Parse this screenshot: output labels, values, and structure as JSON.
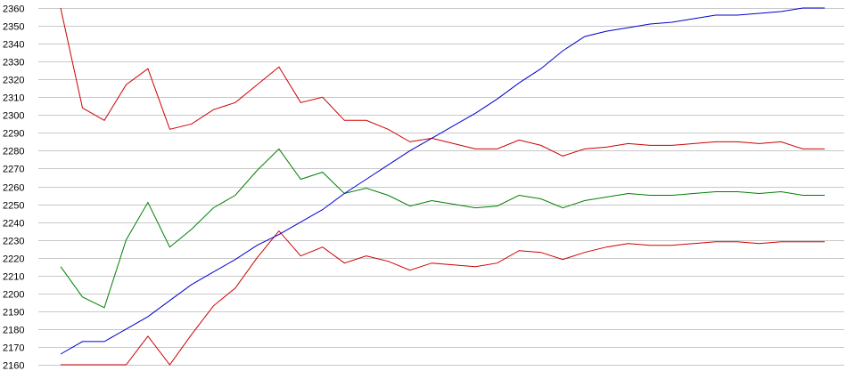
{
  "chart_data": {
    "type": "line",
    "title": "",
    "xlabel": "",
    "ylabel": "",
    "grid": true,
    "legend": "none",
    "ylim": [
      2160,
      2360
    ],
    "yticks": [
      2160,
      2170,
      2180,
      2190,
      2200,
      2210,
      2220,
      2230,
      2240,
      2250,
      2260,
      2270,
      2280,
      2290,
      2300,
      2310,
      2320,
      2330,
      2340,
      2350,
      2360
    ],
    "x": [
      1,
      2,
      3,
      4,
      5,
      6,
      7,
      8,
      9,
      10,
      11,
      12,
      13,
      14,
      15,
      16,
      17,
      18,
      19,
      20,
      21,
      22,
      23,
      24,
      25,
      26,
      27,
      28,
      29,
      30,
      31,
      32,
      33,
      34,
      35,
      36
    ],
    "xlim": [
      1,
      36
    ],
    "colors": {
      "grid": "#c8c8c8",
      "background": "#ffffff",
      "upper": "#cc0000",
      "middle": "#008000",
      "lower": "#cc0000",
      "rising": "#0000cc"
    },
    "series": [
      {
        "id": "upper",
        "color": "#cc0000",
        "values": [
          2360,
          2304,
          2297,
          2317,
          2326,
          2292,
          2295,
          2303,
          2307,
          2317,
          2327,
          2307,
          2310,
          2297,
          2297,
          2292,
          2285,
          2287,
          2284,
          2281,
          2281,
          2286,
          2283,
          2277,
          2281,
          2282,
          2284,
          2283,
          2283,
          2284,
          2285,
          2285,
          2284,
          2285,
          2281,
          2281
        ]
      },
      {
        "id": "middle",
        "color": "#008000",
        "values": [
          2215,
          2198,
          2192,
          2230,
          2251,
          2226,
          2236,
          2248,
          2255,
          2269,
          2281,
          2264,
          2268,
          2256,
          2259,
          2255,
          2249,
          2252,
          2250,
          2248,
          2249,
          2255,
          2253,
          2248,
          2252,
          2254,
          2256,
          2255,
          2255,
          2256,
          2257,
          2257,
          2256,
          2257,
          2255,
          2255
        ]
      },
      {
        "id": "lower",
        "color": "#cc0000",
        "values": [
          2160,
          2160,
          2160,
          2160,
          2176,
          2160,
          2177,
          2193,
          2203,
          2220,
          2235,
          2221,
          2226,
          2217,
          2221,
          2218,
          2213,
          2217,
          2216,
          2215,
          2217,
          2224,
          2223,
          2219,
          2223,
          2226,
          2228,
          2227,
          2227,
          2228,
          2229,
          2229,
          2228,
          2229,
          2229,
          2229
        ]
      },
      {
        "id": "rising",
        "color": "#0000cc",
        "values": [
          2166,
          2173,
          2173,
          2180,
          2187,
          2196,
          2205,
          2212,
          2219,
          2227,
          2233,
          2240,
          2247,
          2256,
          2264,
          2272,
          2280,
          2287,
          2294,
          2301,
          2309,
          2318,
          2326,
          2336,
          2344,
          2347,
          2349,
          2351,
          2352,
          2354,
          2356,
          2356,
          2357,
          2358,
          2360,
          2360
        ]
      }
    ]
  }
}
